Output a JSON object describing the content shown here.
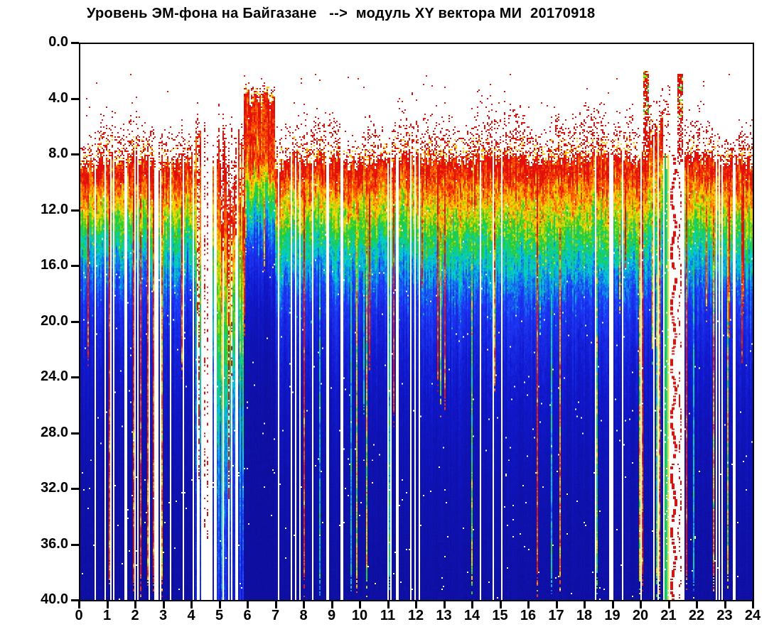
{
  "chart_data": {
    "type": "heatmap",
    "subtype": "spectrogram",
    "title": "Уровень ЭМ-фона на Байгазане   -->  модуль XY вектора МИ  20170918",
    "x_axis": {
      "min": 0,
      "max": 24,
      "unit": "hour",
      "ticks": [
        "0",
        "1",
        "2",
        "3",
        "4",
        "5",
        "6",
        "7",
        "8",
        "9",
        "10",
        "11",
        "12",
        "13",
        "14",
        "15",
        "16",
        "17",
        "18",
        "19",
        "20",
        "21",
        "22",
        "23",
        "24"
      ]
    },
    "y_axis": {
      "min": 0,
      "max": 40,
      "direction": "down",
      "ticks": [
        "0.0",
        "4.0",
        "8.0",
        "12.0",
        "16.0",
        "20.0",
        "24.0",
        "28.0",
        "32.0",
        "36.0",
        "40.0"
      ]
    },
    "colors": {
      "axis": "#000000",
      "background": "#ffffff",
      "colormap_stops": [
        {
          "i": 0.0,
          "rgb": [
            14,
            14,
            158
          ]
        },
        {
          "i": 0.14,
          "rgb": [
            16,
            24,
            205
          ]
        },
        {
          "i": 0.3,
          "rgb": [
            30,
            58,
            248
          ]
        },
        {
          "i": 0.45,
          "rgb": [
            0,
            208,
            212
          ]
        },
        {
          "i": 0.58,
          "rgb": [
            36,
            204,
            40
          ]
        },
        {
          "i": 0.72,
          "rgb": [
            252,
            222,
            0
          ]
        },
        {
          "i": 0.86,
          "rgb": [
            255,
            88,
            0
          ]
        },
        {
          "i": 1.0,
          "rgb": [
            226,
            16,
            10
          ]
        }
      ],
      "speckle_dot": [
        226,
        20,
        12
      ],
      "speckle_dot_hot": [
        255,
        200,
        0
      ]
    },
    "value_bands": {
      "speckle_top_typical": 4.0,
      "solid_red_cap": [
        8.3,
        10.0
      ],
      "yellow_green": [
        10.0,
        13.0
      ],
      "cyan": [
        13.0,
        16.0
      ],
      "blue_below": 16.0
    },
    "seed": 20170918,
    "segments": [
      {
        "t0": 0.0,
        "t1": 4.1,
        "gap": 0.22,
        "top": 4.3,
        "topJit": 2.4,
        "solid": 8.4,
        "solidJit": 0.6,
        "tau": 7.2,
        "plateau": 1.3,
        "speckle": 0.5,
        "streak": 0.2,
        "streakFull": 0.75,
        "midboost": 0.06
      },
      {
        "t0": 4.1,
        "t1": 5.85,
        "mode": "sparse",
        "gap": 0.4,
        "dotted": 0.42,
        "speckle": 0.45
      },
      {
        "t0": 5.85,
        "t1": 6.95,
        "gap": 0.03,
        "top": 2.2,
        "topJit": 0.9,
        "solid": 3.9,
        "solidJit": 0.7,
        "tau": 5.0,
        "plateau": 4.6,
        "speckle": 0.78,
        "streak": 0.06,
        "streakFull": 0.3,
        "midboost": 0.05
      },
      {
        "t0": 6.95,
        "t1": 12.05,
        "gap": 0.14,
        "top": 4.6,
        "topJit": 2.3,
        "solid": 8.4,
        "solidJit": 0.6,
        "tau": 7.4,
        "plateau": 1.3,
        "speckle": 0.52,
        "streak": 0.13,
        "streakFull": 0.35,
        "midboost": 0.07
      },
      {
        "t0": 12.05,
        "t1": 18.85,
        "gap": 0.035,
        "top": 3.9,
        "topJit": 2.2,
        "solid": 8.3,
        "solidJit": 0.5,
        "tau": 8.0,
        "plateau": 1.3,
        "speckle": 0.55,
        "streak": 0.07,
        "streakFull": 0.4,
        "midboost": 0.12
      },
      {
        "t0": 18.85,
        "t1": 19.1,
        "gap": 0.72,
        "top": 4.0,
        "topJit": 1.5,
        "solid": 8.3,
        "solidJit": 0.5,
        "tau": 7.4,
        "plateau": 1.3,
        "speckle": 0.45,
        "streak": 0.05,
        "streakFull": 0.3,
        "midboost": 0.05
      },
      {
        "t0": 19.1,
        "t1": 20.3,
        "gap": 0.16,
        "top": 3.8,
        "topJit": 2.0,
        "solid": 8.2,
        "solidJit": 0.6,
        "tau": 7.8,
        "plateau": 1.3,
        "speckle": 0.5,
        "streak": 0.12,
        "streakFull": 0.5,
        "midboost": 0.12
      },
      {
        "t0": 20.3,
        "t1": 20.8,
        "gap": 0.12,
        "top": 2.6,
        "topJit": 1.2,
        "solid": 7.0,
        "solidJit": 1.4,
        "tau": 9.0,
        "plateau": 1.6,
        "speckle": 0.6,
        "streak": 0.45,
        "streakFull": 0.8,
        "midboost": 0.1
      },
      {
        "t0": 20.8,
        "t1": 21.55,
        "mode": "blank",
        "speckle_top_until": 21.05
      },
      {
        "t0": 21.55,
        "t1": 24.01,
        "gap": 0.12,
        "top": 4.2,
        "topJit": 2.2,
        "solid": 8.4,
        "solidJit": 0.6,
        "tau": 7.8,
        "plateau": 1.3,
        "speckle": 0.55,
        "streak": 0.15,
        "streakFull": 0.5,
        "midboost": 0.08
      }
    ],
    "features": [
      {
        "type": "gapline",
        "t": 12.07,
        "w": 1
      },
      {
        "type": "gapline",
        "t": 15.0,
        "w": 1
      },
      {
        "type": "burst",
        "t0": 20.08,
        "t1": 20.24,
        "top": 1.9,
        "bottom": 8.2
      },
      {
        "type": "line",
        "t": 20.84,
        "v0": 8,
        "v1": 40,
        "color": [
          34,
          200,
          40
        ],
        "w": 1
      },
      {
        "type": "line",
        "t": 20.9,
        "v0": 9,
        "v1": 40,
        "color": [
          0,
          208,
          212
        ],
        "w": 1
      },
      {
        "type": "line",
        "t": 20.96,
        "v0": 8,
        "v1": 40,
        "color": [
          250,
          220,
          0
        ],
        "w": 1
      },
      {
        "type": "wavy_dots",
        "t": 21.12,
        "v0": 8,
        "v1": 40,
        "amp": 0.07,
        "period": 4.0,
        "density": 0.7,
        "color": [
          226,
          16,
          10
        ],
        "w": 2
      },
      {
        "type": "burst",
        "t0": 21.3,
        "t1": 21.47,
        "top": 2.1,
        "bottom": 8.5
      },
      {
        "type": "wavy_dots",
        "t": 21.38,
        "v0": 8.5,
        "v1": 40,
        "amp": 0.05,
        "period": 5.2,
        "density": 0.45,
        "color": [
          226,
          16,
          10
        ],
        "w": 1
      }
    ]
  }
}
